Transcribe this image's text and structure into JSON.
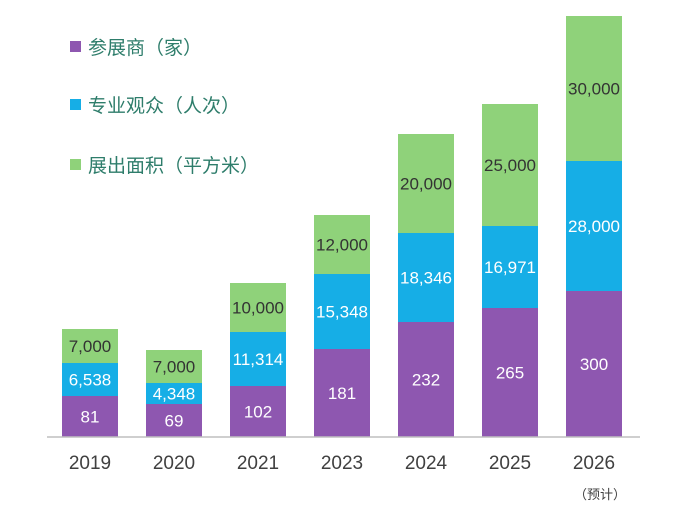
{
  "chart_data": {
    "type": "bar",
    "stacked": true,
    "categories": [
      "2019",
      "2020",
      "2021",
      "2023",
      "2024",
      "2025",
      "2026"
    ],
    "category_note": {
      "category": "2026",
      "text": "（预计）"
    },
    "series": [
      {
        "name": "参展商（家）",
        "color": "#8e57b0",
        "label_color": "#ffffff",
        "values": [
          81,
          69,
          102,
          181,
          232,
          265,
          300
        ],
        "labels": [
          "81",
          "69",
          "102",
          "181",
          "232",
          "265",
          "300"
        ],
        "segment_heights_visual": [
          41,
          33,
          51,
          88,
          115,
          129,
          146
        ]
      },
      {
        "name": "专业观众（人次）",
        "color": "#16aee6",
        "label_color": "#ffffff",
        "values": [
          6538,
          4348,
          11314,
          15348,
          18346,
          16971,
          28000
        ],
        "labels": [
          "6,538",
          "4,348",
          "11,314",
          "15,348",
          "18,346",
          "16,971",
          "28,000"
        ],
        "segment_heights_visual": [
          33,
          21,
          54,
          75,
          89,
          82,
          130
        ]
      },
      {
        "name": "展出面积（平方米）",
        "color": "#8fd27a",
        "label_color": "#333333",
        "values": [
          7000,
          7000,
          10000,
          12000,
          20000,
          25000,
          30000
        ],
        "labels": [
          "7,000",
          "7,000",
          "10,000",
          "12,000",
          "20,000",
          "25,000",
          "30,000"
        ],
        "segment_heights_visual": [
          34,
          33,
          49,
          59,
          99,
          122,
          145
        ]
      }
    ],
    "title": "",
    "xlabel": "",
    "ylabel": "",
    "grid": false,
    "legend_position": "top-left"
  }
}
